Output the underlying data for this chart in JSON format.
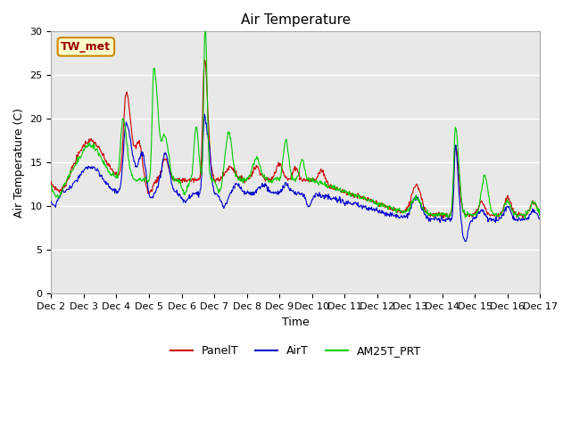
{
  "title": "Air Temperature",
  "ylabel": "Air Temperature (C)",
  "xlabel": "Time",
  "annotation": "TW_met",
  "ylim": [
    0,
    30
  ],
  "yticks": [
    0,
    5,
    10,
    15,
    20,
    25,
    30
  ],
  "plot_bg": "#e8e8e8",
  "fig_bg": "#ffffff",
  "grid_color": "#ffffff",
  "colors": {
    "PanelT": "#cc0000",
    "AirT": "#0000cc",
    "AM25T_PRT": "#00cc00"
  },
  "title_fontsize": 11,
  "label_fontsize": 9,
  "tick_fontsize": 8,
  "legend_fontsize": 9,
  "linewidth": 0.8
}
